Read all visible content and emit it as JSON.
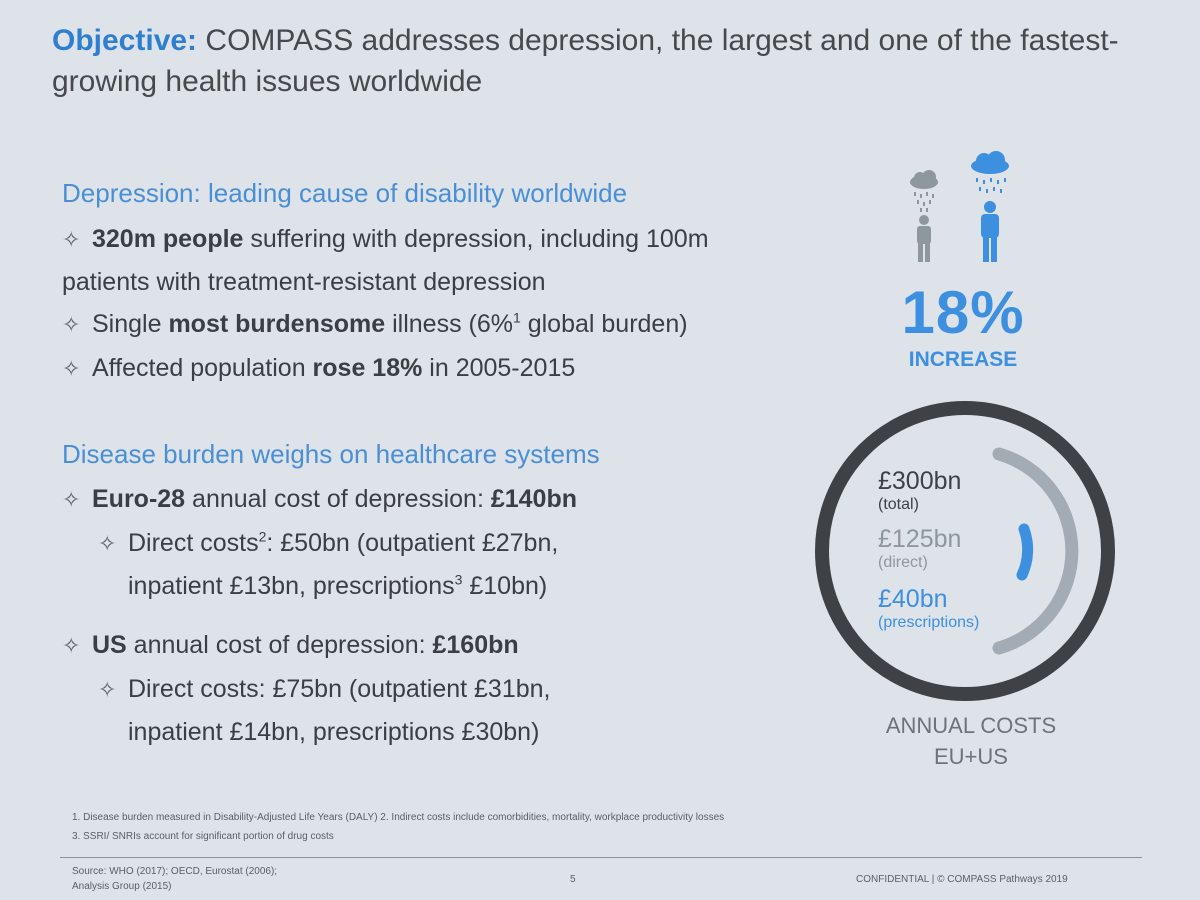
{
  "title": {
    "lead": "Objective:",
    "rest": " COMPASS addresses depression, the largest and one of the fastest-growing health issues worldwide"
  },
  "section1": {
    "heading": "Depression: leading cause of disability worldwide",
    "b1": {
      "bold": "320m people",
      "rest1": " suffering with depression, including 100m",
      "line2": "patients with treatment-resistant depression"
    },
    "b2": {
      "pre": "Single ",
      "bold": "most burdensome",
      "mid": " illness (6%",
      "sup": "1",
      "post": " global burden)"
    },
    "b3": {
      "pre": "Affected population ",
      "bold": "rose 18%",
      "post": " in 2005-2015"
    }
  },
  "section2": {
    "heading": "Disease burden weighs on healthcare systems",
    "eu": {
      "bold": "Euro-28",
      "mid": " annual cost of depression: ",
      "bold2": "£140bn"
    },
    "eu_sub": {
      "pre": "Direct costs",
      "sup": "2",
      "post": ": £50bn (outpatient £27bn,",
      "line2_pre": "inpatient £13bn, prescriptions",
      "line2_sup": "3",
      "line2_post": " £10bn)"
    },
    "us": {
      "bold": "US",
      "mid": " annual cost of depression: ",
      "bold2": "£160bn"
    },
    "us_sub": {
      "line1": "Direct costs: £75bn (outpatient £31bn,",
      "line2": "inpatient £14bn, prescriptions £30bn)"
    }
  },
  "figure": {
    "percent": "18%",
    "increase": "INCREASE"
  },
  "ring": {
    "total_amount": "£300bn",
    "total_caption": "(total)",
    "direct_amount": "£125bn",
    "direct_caption": "(direct)",
    "rx_amount": "£40bn",
    "rx_caption": "(prescriptions)",
    "label_line1": "ANNUAL COSTS",
    "label_line2": "EU+US",
    "colors": {
      "total": "#3e4247",
      "direct": "#a3acb4",
      "prescriptions": "#3d8fe0"
    }
  },
  "footnotes": {
    "line1": "1. Disease burden measured in Disability-Adjusted Life Years (DALY)  2. Indirect costs include comorbidities, mortality, workplace productivity losses",
    "line2": "3. SSRI/ SNRIs account for significant portion of drug costs"
  },
  "footer": {
    "source_line1": "Source: WHO (2017); OECD, Eurostat (2006);",
    "source_line2": "Analysis Group (2015)",
    "page": "5",
    "confidential": "CONFIDENTIAL | © COMPASS Pathways 2019"
  },
  "icons": [
    "rain-cloud-icon",
    "person-icon"
  ]
}
